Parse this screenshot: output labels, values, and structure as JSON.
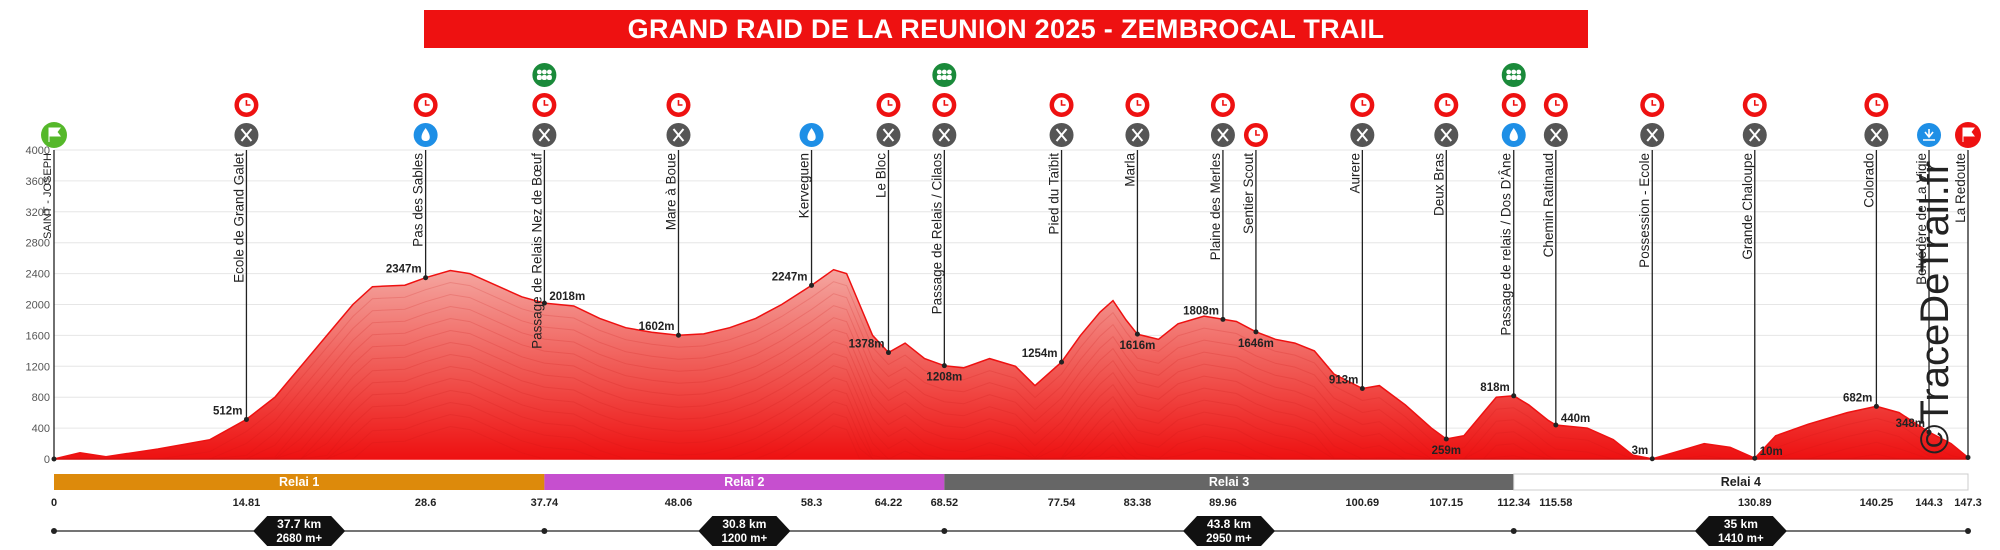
{
  "title": "GRAND RAID DE LA REUNION 2025 - ZEMBROCAL TRAIL",
  "watermark": "©TraceDeTrail.fr",
  "colors": {
    "title_bg": "#ee1111",
    "profile": "#ee1111",
    "relai_1": "#dd8a0b",
    "relai_2": "#c64fcf",
    "relai_3": "#666666",
    "relai_4": "#ffffff",
    "timing": "#ee1111",
    "food": "#555555",
    "water": "#1e8fe6",
    "team": "#1a8a3a",
    "start": "#55b82a",
    "finish": "#ee1111"
  },
  "chart_data": {
    "type": "area",
    "title": "GRAND RAID DE LA REUNION 2025 - ZEMBROCAL TRAIL",
    "xlabel": "",
    "ylabel": "",
    "xlim": [
      0,
      147.3
    ],
    "ylim": [
      0,
      4000
    ],
    "y_ticks": [
      400,
      800,
      1200,
      1600,
      2000,
      2400,
      2800,
      3200,
      3600,
      4000
    ],
    "x_ticks": [
      "0",
      "14.81",
      "28.6",
      "37.74",
      "48.06",
      "58.3",
      "64.22",
      "68.52",
      "77.54",
      "83.38",
      "89.96",
      "100.69",
      "107.15",
      "112.34",
      "115.58",
      "130.89",
      "140.25",
      "144.3",
      "147.3"
    ],
    "grid": true,
    "profile": [
      {
        "x": 0,
        "y": 0
      },
      {
        "x": 2,
        "y": 80
      },
      {
        "x": 4,
        "y": 30
      },
      {
        "x": 8,
        "y": 130
      },
      {
        "x": 12,
        "y": 250
      },
      {
        "x": 14.81,
        "y": 512
      },
      {
        "x": 17,
        "y": 800
      },
      {
        "x": 19,
        "y": 1200
      },
      {
        "x": 21,
        "y": 1600
      },
      {
        "x": 23,
        "y": 2000
      },
      {
        "x": 24.5,
        "y": 2230
      },
      {
        "x": 27,
        "y": 2250
      },
      {
        "x": 28.6,
        "y": 2347
      },
      {
        "x": 30.5,
        "y": 2440
      },
      {
        "x": 32,
        "y": 2400
      },
      {
        "x": 34,
        "y": 2250
      },
      {
        "x": 36,
        "y": 2100
      },
      {
        "x": 37.74,
        "y": 2018
      },
      {
        "x": 40,
        "y": 1980
      },
      {
        "x": 42,
        "y": 1820
      },
      {
        "x": 44,
        "y": 1700
      },
      {
        "x": 46,
        "y": 1640
      },
      {
        "x": 48.06,
        "y": 1602
      },
      {
        "x": 50,
        "y": 1620
      },
      {
        "x": 52,
        "y": 1700
      },
      {
        "x": 54,
        "y": 1820
      },
      {
        "x": 56,
        "y": 2000
      },
      {
        "x": 58.3,
        "y": 2247
      },
      {
        "x": 60,
        "y": 2450
      },
      {
        "x": 61,
        "y": 2400
      },
      {
        "x": 62,
        "y": 2000
      },
      {
        "x": 63,
        "y": 1600
      },
      {
        "x": 64.22,
        "y": 1378
      },
      {
        "x": 65.5,
        "y": 1500
      },
      {
        "x": 67,
        "y": 1300
      },
      {
        "x": 68.52,
        "y": 1208
      },
      {
        "x": 70,
        "y": 1180
      },
      {
        "x": 72,
        "y": 1300
      },
      {
        "x": 74,
        "y": 1200
      },
      {
        "x": 75.5,
        "y": 950
      },
      {
        "x": 77.54,
        "y": 1254
      },
      {
        "x": 79,
        "y": 1600
      },
      {
        "x": 80.5,
        "y": 1900
      },
      {
        "x": 81.5,
        "y": 2050
      },
      {
        "x": 82.5,
        "y": 1800
      },
      {
        "x": 83.38,
        "y": 1616
      },
      {
        "x": 85,
        "y": 1550
      },
      {
        "x": 86.5,
        "y": 1750
      },
      {
        "x": 88.5,
        "y": 1850
      },
      {
        "x": 89.96,
        "y": 1808
      },
      {
        "x": 91,
        "y": 1780
      },
      {
        "x": 92.5,
        "y": 1646
      },
      {
        "x": 94,
        "y": 1550
      },
      {
        "x": 95.5,
        "y": 1500
      },
      {
        "x": 97,
        "y": 1400
      },
      {
        "x": 98.5,
        "y": 1100
      },
      {
        "x": 100.69,
        "y": 913
      },
      {
        "x": 102,
        "y": 950
      },
      {
        "x": 104,
        "y": 700
      },
      {
        "x": 106,
        "y": 400
      },
      {
        "x": 107.15,
        "y": 259
      },
      {
        "x": 108.5,
        "y": 300
      },
      {
        "x": 110,
        "y": 600
      },
      {
        "x": 111,
        "y": 800
      },
      {
        "x": 112.34,
        "y": 818
      },
      {
        "x": 113.5,
        "y": 700
      },
      {
        "x": 115,
        "y": 500
      },
      {
        "x": 115.58,
        "y": 440
      },
      {
        "x": 118,
        "y": 400
      },
      {
        "x": 120,
        "y": 250
      },
      {
        "x": 121.5,
        "y": 50
      },
      {
        "x": 123,
        "y": 3
      },
      {
        "x": 125,
        "y": 100
      },
      {
        "x": 127,
        "y": 200
      },
      {
        "x": 129,
        "y": 150
      },
      {
        "x": 130.89,
        "y": 10
      },
      {
        "x": 132.5,
        "y": 300
      },
      {
        "x": 135,
        "y": 450
      },
      {
        "x": 138,
        "y": 600
      },
      {
        "x": 140.25,
        "y": 682
      },
      {
        "x": 142,
        "y": 600
      },
      {
        "x": 144.3,
        "y": 348
      },
      {
        "x": 146,
        "y": 200
      },
      {
        "x": 147.3,
        "y": 20
      }
    ],
    "elevation_labels": [
      {
        "x": 14.81,
        "y": 512,
        "label": "512m",
        "side": "left"
      },
      {
        "x": 28.6,
        "y": 2347,
        "label": "2347m",
        "side": "left"
      },
      {
        "x": 37.74,
        "y": 2018,
        "label": "2018m",
        "side": "right"
      },
      {
        "x": 48.06,
        "y": 1602,
        "label": "1602m",
        "side": "left"
      },
      {
        "x": 58.3,
        "y": 2247,
        "label": "2247m",
        "side": "left"
      },
      {
        "x": 64.22,
        "y": 1378,
        "label": "1378m",
        "side": "left"
      },
      {
        "x": 68.52,
        "y": 1208,
        "label": "1208m",
        "side": "below"
      },
      {
        "x": 77.54,
        "y": 1254,
        "label": "1254m",
        "side": "left"
      },
      {
        "x": 83.38,
        "y": 1616,
        "label": "1616m",
        "side": "below"
      },
      {
        "x": 89.96,
        "y": 1808,
        "label": "1808m",
        "side": "left"
      },
      {
        "x": 92.5,
        "y": 1646,
        "label": "1646m",
        "side": "below"
      },
      {
        "x": 100.69,
        "y": 913,
        "label": "913m",
        "side": "left"
      },
      {
        "x": 107.15,
        "y": 259,
        "label": "259m",
        "side": "below"
      },
      {
        "x": 112.34,
        "y": 818,
        "label": "818m",
        "side": "left"
      },
      {
        "x": 115.58,
        "y": 440,
        "label": "440m",
        "side": "right"
      },
      {
        "x": 123,
        "y": 3,
        "label": "3m",
        "side": "left"
      },
      {
        "x": 130.89,
        "y": 10,
        "label": "10m",
        "side": "right"
      },
      {
        "x": 140.25,
        "y": 682,
        "label": "682m",
        "side": "left"
      },
      {
        "x": 144.3,
        "y": 348,
        "label": "348m",
        "side": "left"
      }
    ],
    "waypoints": [
      {
        "x": 0,
        "name": "SAINT - JOSEPH",
        "icons": [
          "start"
        ]
      },
      {
        "x": 14.81,
        "name": "Ecole de Grand Galet",
        "icons": [
          "timing",
          "food"
        ]
      },
      {
        "x": 28.6,
        "name": "Pas des Sables",
        "icons": [
          "timing",
          "water"
        ]
      },
      {
        "x": 37.74,
        "name": "Passage de Relais Nez de Bœuf",
        "icons": [
          "team",
          "timing",
          "food"
        ]
      },
      {
        "x": 48.06,
        "name": "Mare à Boue",
        "icons": [
          "timing",
          "food"
        ]
      },
      {
        "x": 58.3,
        "name": "Kerveguen",
        "icons": [
          "water"
        ]
      },
      {
        "x": 64.22,
        "name": "Le Bloc",
        "icons": [
          "timing",
          "food"
        ]
      },
      {
        "x": 68.52,
        "name": "Passage de Relais / Cilaos",
        "icons": [
          "team",
          "timing",
          "food"
        ]
      },
      {
        "x": 77.54,
        "name": "Pied du Taïbit",
        "icons": [
          "timing",
          "food"
        ]
      },
      {
        "x": 83.38,
        "name": "Marla",
        "icons": [
          "timing",
          "food"
        ]
      },
      {
        "x": 89.96,
        "name": "Plaine des Merles",
        "icons": [
          "timing",
          "food"
        ]
      },
      {
        "x": 92.5,
        "name": "Sentier Scout",
        "icons": [
          "timing"
        ]
      },
      {
        "x": 100.69,
        "name": "Aurere",
        "icons": [
          "timing",
          "food"
        ]
      },
      {
        "x": 107.15,
        "name": "Deux Bras",
        "icons": [
          "timing",
          "food"
        ]
      },
      {
        "x": 112.34,
        "name": "Passage de relais / Dos D'Âne",
        "icons": [
          "team",
          "timing",
          "water"
        ]
      },
      {
        "x": 115.58,
        "name": "Chemin Ratinaud",
        "icons": [
          "timing",
          "food"
        ]
      },
      {
        "x": 123,
        "name": "Possession - Ecole",
        "icons": [
          "timing",
          "food"
        ]
      },
      {
        "x": 130.89,
        "name": "Grande Chaloupe",
        "icons": [
          "timing",
          "food"
        ]
      },
      {
        "x": 140.25,
        "name": "Colorado",
        "icons": [
          "timing",
          "food"
        ]
      },
      {
        "x": 144.3,
        "name": "Belvédère de La Vigie",
        "icons": [
          "viewpoint"
        ]
      },
      {
        "x": 147.3,
        "name": "La Redoute",
        "icons": [
          "finish"
        ]
      }
    ],
    "relays": [
      {
        "name": "Relai 1",
        "from": 0,
        "to": 37.74,
        "color": "#dd8a0b",
        "summary_km": "37.7 km",
        "summary_gain": "2680 m+"
      },
      {
        "name": "Relai 2",
        "from": 37.74,
        "to": 68.52,
        "color": "#c64fcf",
        "summary_km": "30.8 km",
        "summary_gain": "1200 m+"
      },
      {
        "name": "Relai 3",
        "from": 68.52,
        "to": 112.34,
        "color": "#666666",
        "summary_km": "43.8 km",
        "summary_gain": "2950 m+"
      },
      {
        "name": "Relai 4",
        "from": 112.34,
        "to": 147.3,
        "color": "#ffffff",
        "summary_km": "35 km",
        "summary_gain": "1410 m+"
      }
    ]
  }
}
